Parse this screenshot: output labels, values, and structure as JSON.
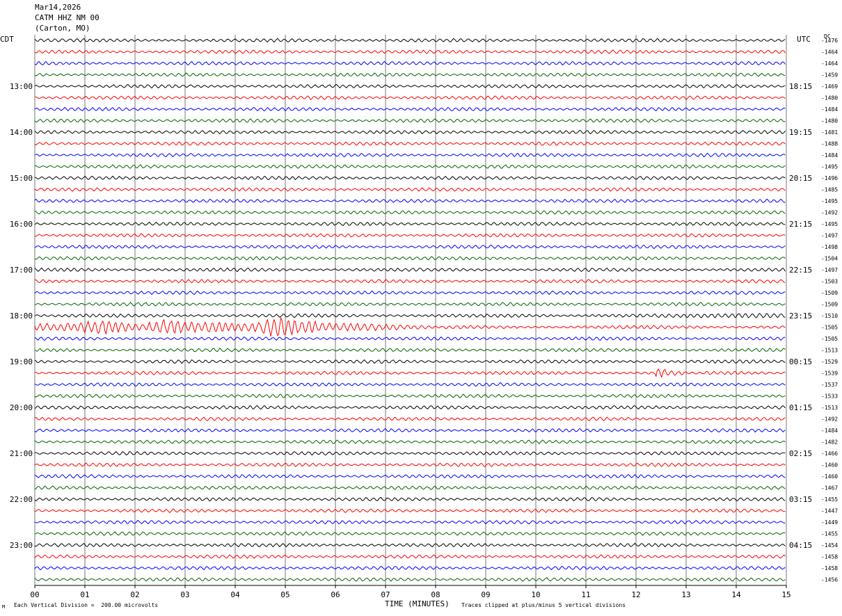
{
  "header": {
    "date": "Mar14,2026",
    "station": "CATM HHZ NM 00",
    "location": "(Carton, MO)"
  },
  "labels": {
    "left_tz": "CDT",
    "right_tz": "UTC",
    "dc_header": "DC"
  },
  "footer": {
    "left": "Each Vertical Division =  200.00 microvolts",
    "center": "TIME (MINUTES)",
    "right": "Traces clipped at plus/minus 5 vertical divisions",
    "corner": "M"
  },
  "chart_data": {
    "type": "line",
    "xlabel": "TIME (MINUTES)",
    "xlim": [
      0,
      15
    ],
    "x_ticks": [
      "00",
      "01",
      "02",
      "03",
      "04",
      "05",
      "06",
      "07",
      "08",
      "09",
      "10",
      "11",
      "12",
      "13",
      "14",
      "15"
    ],
    "trace_colors": [
      "#000000",
      "#ff0000",
      "#0000ff",
      "#006400"
    ],
    "trace_count": 48,
    "left_time_labels": [
      {
        "trace": 4,
        "label": "13:00"
      },
      {
        "trace": 8,
        "label": "14:00"
      },
      {
        "trace": 12,
        "label": "15:00"
      },
      {
        "trace": 16,
        "label": "16:00"
      },
      {
        "trace": 20,
        "label": "17:00"
      },
      {
        "trace": 24,
        "label": "18:00"
      },
      {
        "trace": 28,
        "label": "19:00"
      },
      {
        "trace": 32,
        "label": "20:00"
      },
      {
        "trace": 36,
        "label": "21:00"
      },
      {
        "trace": 40,
        "label": "22:00"
      },
      {
        "trace": 44,
        "label": "23:00"
      }
    ],
    "right_time_labels": [
      {
        "trace": 4,
        "label": "18:15"
      },
      {
        "trace": 8,
        "label": "19:15"
      },
      {
        "trace": 12,
        "label": "20:15"
      },
      {
        "trace": 16,
        "label": "21:15"
      },
      {
        "trace": 20,
        "label": "22:15"
      },
      {
        "trace": 24,
        "label": "23:15"
      },
      {
        "trace": 28,
        "label": "00:15"
      },
      {
        "trace": 32,
        "label": "01:15"
      },
      {
        "trace": 36,
        "label": "02:15"
      },
      {
        "trace": 40,
        "label": "03:15"
      },
      {
        "trace": 44,
        "label": "04:15"
      }
    ],
    "dc_offsets": [
      "-1476",
      "-1464",
      "-1464",
      "-1459",
      "-1469",
      "-1480",
      "-1484",
      "-1480",
      "-1481",
      "-1488",
      "-1484",
      "-1495",
      "-1496",
      "-1485",
      "-1495",
      "-1492",
      "-1495",
      "-1497",
      "-1498",
      "-1504",
      "-1497",
      "-1503",
      "-1509",
      "-1509",
      "-1510",
      "-1505",
      "-1505",
      "-1513",
      "-1529",
      "-1539",
      "-1537",
      "-1533",
      "-1513",
      "-1492",
      "-1484",
      "-1482",
      "-1466",
      "-1460",
      "-1460",
      "-1467",
      "-1455",
      "-1447",
      "-1449",
      "-1455",
      "-1454",
      "-1458",
      "-1458",
      "-1456"
    ],
    "events": [
      {
        "trace": 25,
        "start_min": 0.0,
        "end_min": 8.2,
        "peak_min": 4.8,
        "description_level": "large"
      },
      {
        "trace": 29,
        "start_min": 12.3,
        "end_min": 13.4,
        "peak_min": 12.4,
        "description_level": "small"
      },
      {
        "trace": 24,
        "start_min": 10.5,
        "end_min": 15.0,
        "peak_min": 14.5,
        "description_level": "elevated-noise"
      }
    ]
  }
}
